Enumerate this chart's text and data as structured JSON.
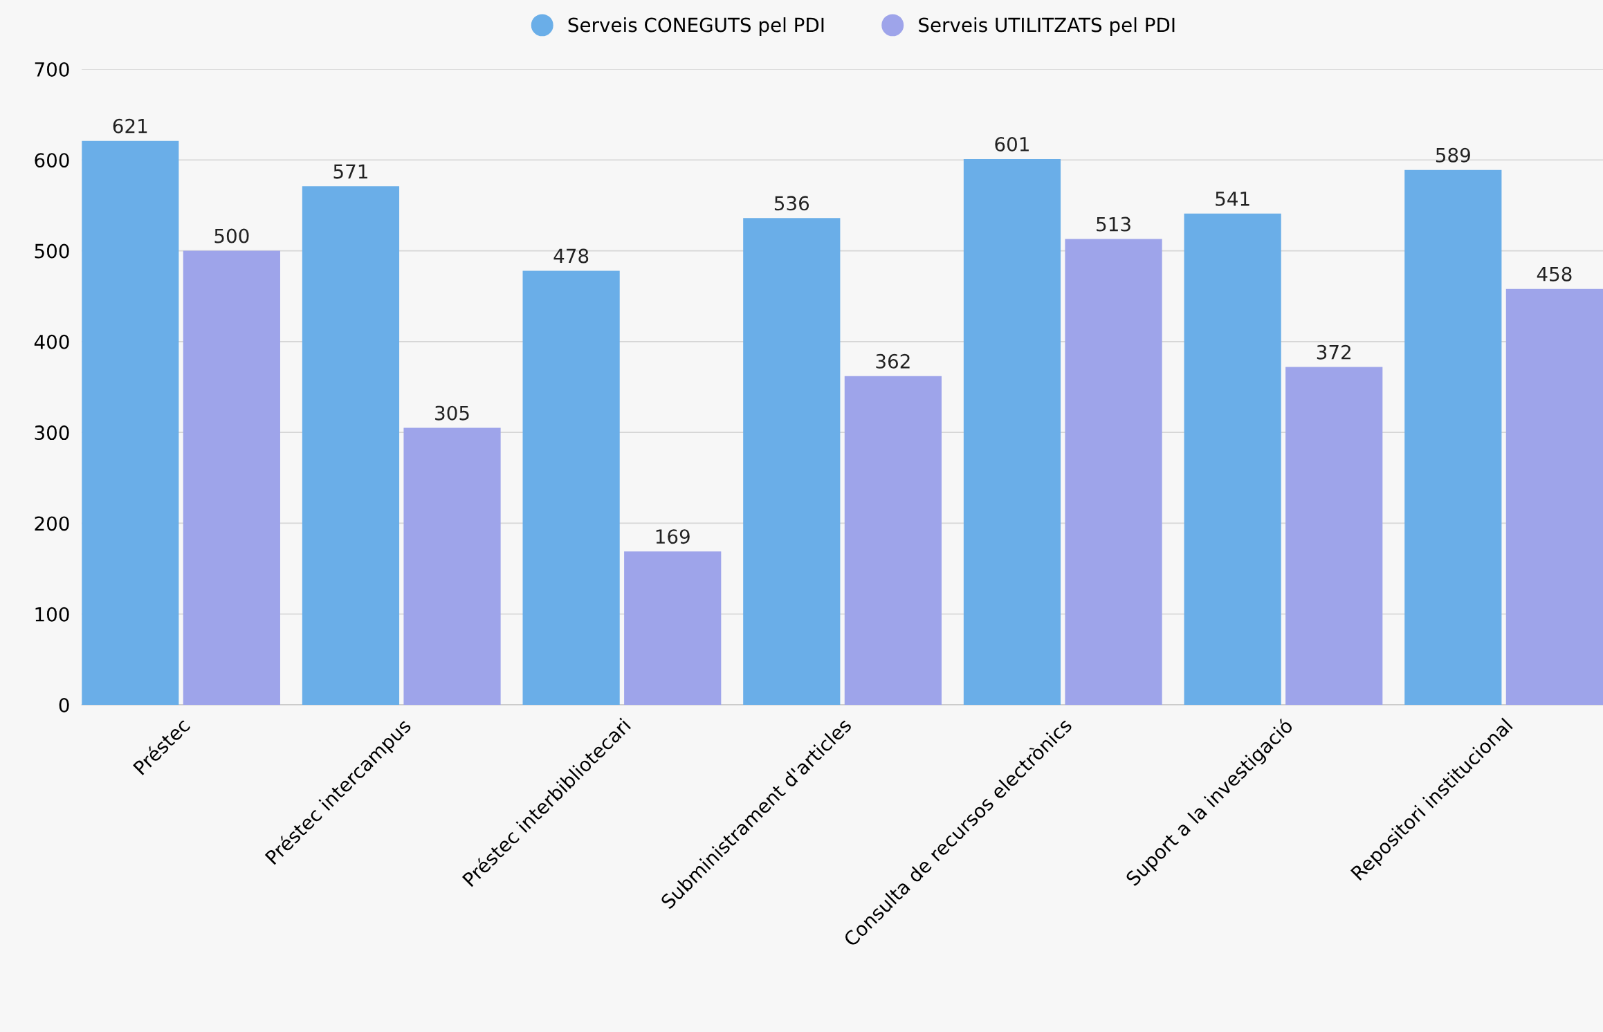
{
  "chart_data": {
    "type": "bar",
    "categories": [
      "Préstec",
      "Préstec intercampus",
      "Préstec interbibliotecari",
      "Subministrament d'articles",
      "Consulta de recursos electrònics",
      "Suport a la investigació",
      "Repositori institucional"
    ],
    "series": [
      {
        "name": "Serveis CONEGUTS pel PDI",
        "color": "#6aaee8",
        "values": [
          621,
          571,
          478,
          536,
          601,
          541,
          589
        ]
      },
      {
        "name": "Serveis UTILITZATS pel PDI",
        "color": "#9ea4ea",
        "values": [
          500,
          305,
          169,
          362,
          513,
          372,
          458
        ]
      }
    ],
    "ylim": [
      0,
      700
    ],
    "yticks": [
      0,
      100,
      200,
      300,
      400,
      500,
      600,
      700
    ],
    "grid": "y",
    "legend": "top",
    "data_labels": true
  }
}
